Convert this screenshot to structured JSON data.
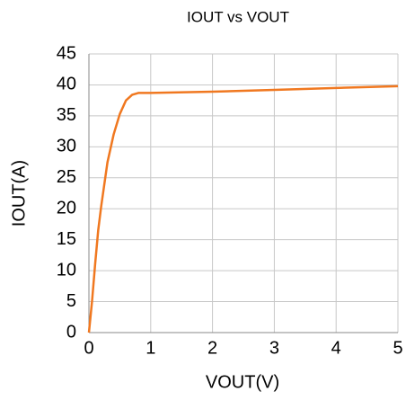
{
  "chart_data": {
    "type": "line",
    "title": "IOUT vs VOUT",
    "x_label": "VOUT(V)",
    "y_label": "IOUT(A)",
    "x": [
      0,
      0.05,
      0.1,
      0.15,
      0.2,
      0.3,
      0.4,
      0.5,
      0.6,
      0.7,
      0.8,
      1,
      2,
      3,
      4,
      5
    ],
    "values": [
      0,
      5,
      11,
      16.5,
      20.5,
      27.5,
      32,
      35.3,
      37.5,
      38.4,
      38.7,
      38.7,
      38.9,
      39.2,
      39.5,
      39.8
    ],
    "color": "#f07820",
    "xlim": [
      0,
      5
    ],
    "xticks": [
      0,
      1,
      2,
      3,
      4,
      5
    ],
    "ylim": [
      0,
      45
    ],
    "yticks": [
      0,
      5,
      10,
      15,
      20,
      25,
      30,
      35,
      40,
      45
    ],
    "grid": true
  }
}
